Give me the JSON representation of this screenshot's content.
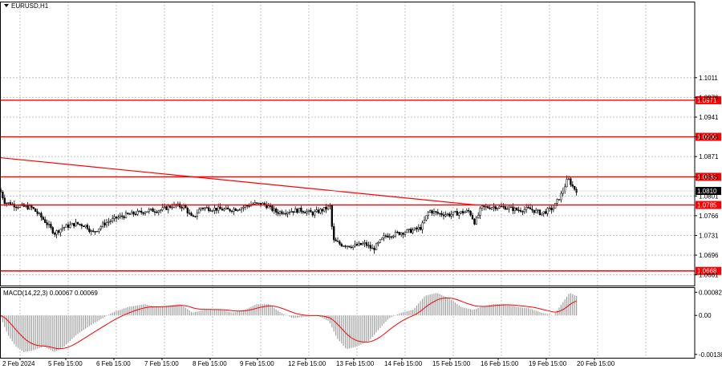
{
  "chart_data": {
    "type": "candlestick",
    "title": "EURUSD,H1",
    "price_scale": {
      "ylim": [
        1.0642,
        1.1146
      ],
      "ticks": [
        "1.1011",
        "1.0976",
        "1.0941",
        "1.0906",
        "1.0871",
        "1.0835",
        "1.0801",
        "1.0766",
        "1.0731",
        "1.0696",
        "1.0661"
      ]
    },
    "x_labels": [
      "2 Feb 2024",
      "5 Feb 15:00",
      "6 Feb 15:00",
      "7 Feb 15:00",
      "8 Feb 15:00",
      "9 Feb 15:00",
      "12 Feb 15:00",
      "13 Feb 15:00",
      "14 Feb 15:00",
      "15 Feb 15:00",
      "16 Feb 15:00",
      "19 Feb 15:00",
      "20 Feb 15:00"
    ],
    "levels": [
      {
        "value": 1.0971,
        "label": "1.0971"
      },
      {
        "value": 1.0906,
        "label": "1.0906"
      },
      {
        "value": 1.0835,
        "label": "1.0835"
      },
      {
        "value": 1.0785,
        "label": "1.0785"
      },
      {
        "value": 1.0668,
        "label": "1.0668"
      }
    ],
    "current_price": {
      "value": 1.081,
      "label": "1.0810"
    },
    "trendline": {
      "from": [
        0,
        1.0869
      ],
      "to": [
        594,
        1.0785
      ]
    },
    "close_series": [
      [
        0,
        1.0812
      ],
      [
        6,
        1.079
      ],
      [
        20,
        1.0784
      ],
      [
        40,
        1.078
      ],
      [
        55,
        1.0758
      ],
      [
        68,
        1.0735
      ],
      [
        78,
        1.0745
      ],
      [
        95,
        1.0752
      ],
      [
        108,
        1.0748
      ],
      [
        115,
        1.0735
      ],
      [
        130,
        1.0752
      ],
      [
        145,
        1.0762
      ],
      [
        160,
        1.0768
      ],
      [
        175,
        1.0772
      ],
      [
        185,
        1.0775
      ],
      [
        200,
        1.0776
      ],
      [
        215,
        1.0784
      ],
      [
        230,
        1.0782
      ],
      [
        240,
        1.076
      ],
      [
        250,
        1.078
      ],
      [
        270,
        1.0778
      ],
      [
        285,
        1.0776
      ],
      [
        300,
        1.078
      ],
      [
        315,
        1.0787
      ],
      [
        330,
        1.0786
      ],
      [
        345,
        1.0772
      ],
      [
        360,
        1.0774
      ],
      [
        375,
        1.0776
      ],
      [
        390,
        1.077
      ],
      [
        405,
        1.0778
      ],
      [
        412,
        1.0783
      ],
      [
        415,
        1.0722
      ],
      [
        425,
        1.0715
      ],
      [
        440,
        1.0712
      ],
      [
        455,
        1.0716
      ],
      [
        465,
        1.0706
      ],
      [
        480,
        1.073
      ],
      [
        500,
        1.0736
      ],
      [
        515,
        1.074
      ],
      [
        525,
        1.0745
      ],
      [
        535,
        1.0775
      ],
      [
        545,
        1.077
      ],
      [
        560,
        1.0768
      ],
      [
        575,
        1.0772
      ],
      [
        585,
        1.0774
      ],
      [
        592,
        1.0753
      ],
      [
        600,
        1.078
      ],
      [
        615,
        1.0782
      ],
      [
        630,
        1.0781
      ],
      [
        645,
        1.0776
      ],
      [
        660,
        1.0778
      ],
      [
        675,
        1.077
      ],
      [
        690,
        1.078
      ],
      [
        700,
        1.0805
      ],
      [
        708,
        1.0832
      ],
      [
        715,
        1.0815
      ],
      [
        720,
        1.081
      ]
    ],
    "macd": {
      "label": "MACD(14,22,3) 0.00067 0.00069",
      "ylim": [
        -0.0015,
        0.001
      ],
      "ticks": [
        "0.00082",
        "0.00",
        "-0.00138"
      ],
      "histogram": [
        [
          0,
          0.0
        ],
        [
          10,
          -0.0007
        ],
        [
          20,
          -0.0011
        ],
        [
          30,
          -0.0013
        ],
        [
          40,
          -0.00125
        ],
        [
          55,
          -0.0011
        ],
        [
          68,
          -0.0013
        ],
        [
          80,
          -0.0011
        ],
        [
          95,
          -0.0007
        ],
        [
          110,
          -0.0004
        ],
        [
          125,
          -0.00015
        ],
        [
          140,
          0.0001
        ],
        [
          160,
          0.0003
        ],
        [
          180,
          0.0004
        ],
        [
          195,
          0.0003
        ],
        [
          210,
          0.00035
        ],
        [
          225,
          0.0004
        ],
        [
          240,
          0.0001
        ],
        [
          255,
          0.0002
        ],
        [
          275,
          0.0002
        ],
        [
          290,
          0.0001
        ],
        [
          305,
          0.0002
        ],
        [
          320,
          0.0004
        ],
        [
          335,
          0.0004
        ],
        [
          350,
          0.0001
        ],
        [
          365,
          -0.0001
        ],
        [
          380,
          -5e-05
        ],
        [
          395,
          0.0
        ],
        [
          410,
          -0.0002
        ],
        [
          420,
          -0.0008
        ],
        [
          432,
          -0.0012
        ],
        [
          445,
          -0.0011
        ],
        [
          460,
          -0.0009
        ],
        [
          472,
          -0.0005
        ],
        [
          485,
          -0.0001
        ],
        [
          500,
          0.0001
        ],
        [
          515,
          0.0002
        ],
        [
          530,
          0.0007
        ],
        [
          545,
          0.0008
        ],
        [
          560,
          0.0006
        ],
        [
          575,
          0.0003
        ],
        [
          590,
          0.0002
        ],
        [
          600,
          0.0003
        ],
        [
          615,
          0.0004
        ],
        [
          630,
          0.0004
        ],
        [
          645,
          0.0003
        ],
        [
          660,
          0.00025
        ],
        [
          675,
          0.0001
        ],
        [
          690,
          0.0
        ],
        [
          700,
          0.0004
        ],
        [
          710,
          0.0008
        ],
        [
          720,
          0.00067
        ]
      ]
    },
    "grid": "dotted"
  },
  "colors": {
    "level": "#ff0000",
    "candle": "#000000",
    "signal": "#ff0000",
    "histogram": "#a0a0a0",
    "level_label_bg": "#ff0000",
    "current_label_bg": "#000000"
  }
}
